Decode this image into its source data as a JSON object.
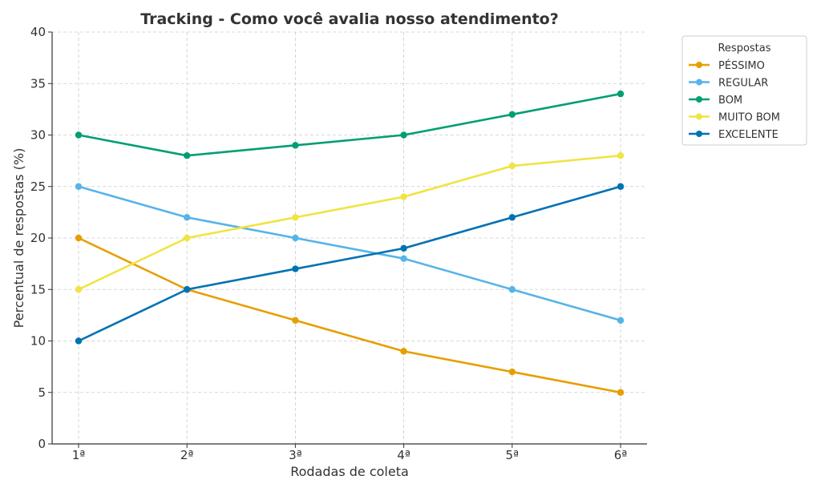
{
  "chart_data": {
    "type": "line",
    "title": "Tracking - Como você avalia nosso atendimento?",
    "xlabel": "Rodadas de coleta",
    "ylabel": "Percentual de respostas (%)",
    "categories": [
      "1ª",
      "2ª",
      "3ª",
      "4ª",
      "5ª",
      "6ª"
    ],
    "ylim": [
      0,
      40
    ],
    "yticks": [
      0,
      5,
      10,
      15,
      20,
      25,
      30,
      35,
      40
    ],
    "grid": true,
    "legend": {
      "title": "Respostas",
      "placement": "outside-top-right"
    },
    "series": [
      {
        "name": "PÉSSIMO",
        "color": "#E69F00",
        "values": [
          20,
          15,
          12,
          9,
          7,
          5
        ]
      },
      {
        "name": "REGULAR",
        "color": "#56B4E9",
        "values": [
          25,
          22,
          20,
          18,
          15,
          12
        ]
      },
      {
        "name": "BOM",
        "color": "#009E73",
        "values": [
          30,
          28,
          29,
          30,
          32,
          34
        ]
      },
      {
        "name": "MUITO BOM",
        "color": "#F0E442",
        "values": [
          15,
          20,
          22,
          24,
          27,
          28
        ]
      },
      {
        "name": "EXCELENTE",
        "color": "#0072B2",
        "values": [
          10,
          15,
          17,
          19,
          22,
          25
        ]
      }
    ]
  }
}
